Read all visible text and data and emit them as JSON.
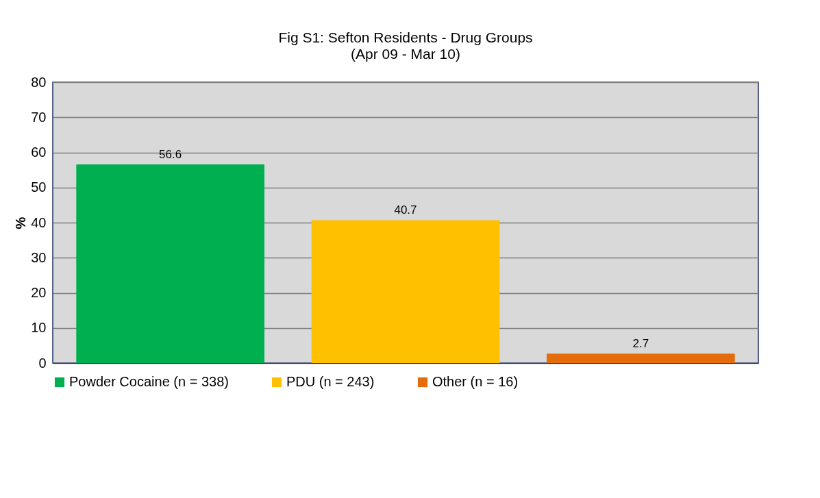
{
  "chart_data": {
    "type": "bar",
    "title": "Fig S1: Sefton  Residents - Drug Groups",
    "subtitle": "(Apr 09 - Mar 10)",
    "ylabel": "%",
    "categories": [
      null,
      null,
      null
    ],
    "series": [
      {
        "name": "Powder Cocaine (n = 338)",
        "color": "#00b050",
        "values": [
          56.6,
          null,
          null
        ]
      },
      {
        "name": "PDU (n = 243)",
        "color": "#ffc000",
        "values": [
          null,
          40.7,
          null
        ]
      },
      {
        "name": "Other (n = 16)",
        "color": "#e46c0a",
        "values": [
          null,
          null,
          2.7
        ]
      }
    ],
    "ylim": [
      0,
      80
    ],
    "yticks": [
      0,
      10,
      20,
      30,
      40,
      50,
      60,
      70,
      80
    ],
    "grid": "y",
    "legend": "bottom",
    "data_labels": true,
    "tick_labels": "y"
  }
}
